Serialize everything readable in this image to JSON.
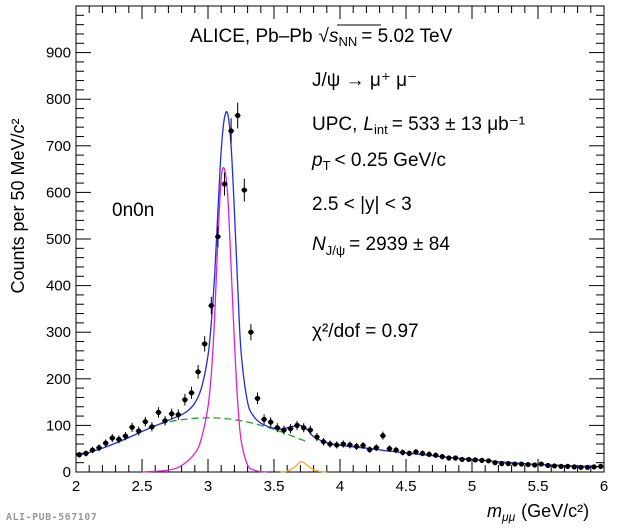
{
  "chart_data": {
    "type": "scatter",
    "title": "ALICE, Pb–Pb",
    "energy_label": "= 5.02 TeV",
    "xlabel": "(GeV/c²)",
    "ylabel": "Counts per 50 MeV/c²",
    "xlim": [
      2,
      6
    ],
    "ylim": [
      0,
      1000
    ],
    "x_ticks": [
      2,
      2.5,
      3,
      3.5,
      4,
      4.5,
      5,
      5.5,
      6
    ],
    "x_tick_labels": [
      "2",
      "2.5",
      "3",
      "3.5",
      "4",
      "4.5",
      "5",
      "5.5",
      "6"
    ],
    "y_ticks": [
      0,
      100,
      200,
      300,
      400,
      500,
      600,
      700,
      800,
      900
    ],
    "y_tick_labels": [
      "0",
      "100",
      "200",
      "300",
      "400",
      "500",
      "600",
      "700",
      "800",
      "900"
    ],
    "annotations": {
      "decay": "J/ψ → μ⁺ μ⁻",
      "upc": "UPC,",
      "lumi": "= 533 ± 13 μb⁻¹",
      "pt": "< 0.25 GeV/c",
      "rapidity": "2.5 < |y| < 3",
      "njpsi": "= 2939 ± 84",
      "chi2": "χ²/dof = 0.97",
      "class": "0n0n"
    },
    "series": [
      {
        "name": "Data",
        "style": "markers",
        "color": "#000000",
        "x": [
          2.025,
          2.075,
          2.125,
          2.175,
          2.225,
          2.275,
          2.325,
          2.375,
          2.425,
          2.475,
          2.525,
          2.575,
          2.625,
          2.675,
          2.725,
          2.775,
          2.825,
          2.875,
          2.925,
          2.975,
          3.025,
          3.075,
          3.125,
          3.175,
          3.225,
          3.275,
          3.325,
          3.375,
          3.425,
          3.475,
          3.525,
          3.575,
          3.625,
          3.675,
          3.725,
          3.775,
          3.825,
          3.875,
          3.925,
          3.975,
          4.025,
          4.075,
          4.125,
          4.175,
          4.225,
          4.275,
          4.325,
          4.375,
          4.425,
          4.475,
          4.525,
          4.575,
          4.625,
          4.675,
          4.725,
          4.775,
          4.825,
          4.875,
          4.925,
          4.975,
          5.025,
          5.075,
          5.125,
          5.175,
          5.225,
          5.275,
          5.325,
          5.375,
          5.425,
          5.475,
          5.525,
          5.575,
          5.625,
          5.675,
          5.725,
          5.775,
          5.825,
          5.875,
          5.925,
          5.975
        ],
        "y": [
          37,
          40,
          47,
          52,
          62,
          73,
          70,
          77,
          96,
          88,
          108,
          97,
          128,
          110,
          125,
          123,
          155,
          170,
          215,
          275,
          357,
          505,
          618,
          732,
          765,
          605,
          300,
          158,
          113,
          107,
          95,
          90,
          93,
          100,
          95,
          90,
          75,
          65,
          60,
          58,
          60,
          58,
          55,
          57,
          48,
          52,
          78,
          50,
          47,
          42,
          40,
          43,
          40,
          38,
          36,
          33,
          30,
          30,
          27,
          27,
          26,
          25,
          24,
          20,
          18,
          18,
          17,
          17,
          16,
          15,
          17,
          14,
          13,
          12,
          12,
          11,
          10,
          10,
          11,
          12
        ]
      },
      {
        "name": "Total fit",
        "style": "line",
        "color": "#1f2fd6",
        "x": [
          2,
          2.1,
          2.2,
          2.3,
          2.4,
          2.5,
          2.6,
          2.7,
          2.8,
          2.85,
          2.9,
          2.95,
          3.0,
          3.025,
          3.05,
          3.075,
          3.1,
          3.125,
          3.15,
          3.175,
          3.2,
          3.225,
          3.25,
          3.3,
          3.35,
          3.4,
          3.45,
          3.5,
          3.55,
          3.6,
          3.65,
          3.7,
          3.75,
          3.8,
          3.9,
          4.0,
          4.2,
          4.4,
          4.6,
          4.8,
          5.0,
          5.2,
          5.4,
          5.6,
          5.8,
          6.0
        ],
        "y": [
          35,
          42,
          51,
          62,
          74,
          87,
          99,
          111,
          123,
          132,
          148,
          180,
          250,
          320,
          420,
          560,
          690,
          760,
          768,
          700,
          560,
          400,
          260,
          150,
          118,
          105,
          98,
          94,
          92,
          95,
          98,
          100,
          92,
          76,
          63,
          57,
          51,
          44,
          38,
          32,
          27,
          22,
          18,
          15,
          13,
          11
        ]
      },
      {
        "name": "Background",
        "style": "dashed",
        "color": "#2ca02c",
        "x": [
          2.55,
          2.65,
          2.75,
          2.85,
          2.95,
          3.05,
          3.15,
          3.25,
          3.35,
          3.45,
          3.55,
          3.65,
          3.75
        ],
        "y": [
          95,
          104,
          110,
          114,
          116,
          116,
          114,
          110,
          104,
          96,
          87,
          76,
          65
        ]
      },
      {
        "name": "J/psi signal",
        "style": "line",
        "color": "#e020d0",
        "x": [
          2.5,
          2.7,
          2.8,
          2.9,
          2.95,
          3.0,
          3.025,
          3.05,
          3.075,
          3.1,
          3.125,
          3.15,
          3.175,
          3.2,
          3.225,
          3.25,
          3.3,
          3.35,
          3.4,
          3.45
        ],
        "y": [
          0,
          4,
          14,
          40,
          72,
          140,
          210,
          330,
          500,
          630,
          650,
          590,
          440,
          280,
          150,
          70,
          15,
          4,
          1,
          0
        ]
      },
      {
        "name": "psi(2S) signal",
        "style": "line",
        "color": "#f5a623",
        "x": [
          3.55,
          3.6,
          3.65,
          3.68,
          3.7,
          3.72,
          3.75,
          3.8,
          3.85,
          3.9
        ],
        "y": [
          0,
          2,
          9,
          17,
          22,
          21,
          15,
          5,
          1,
          0
        ]
      }
    ]
  },
  "footer": "ALI-PUB-567107"
}
